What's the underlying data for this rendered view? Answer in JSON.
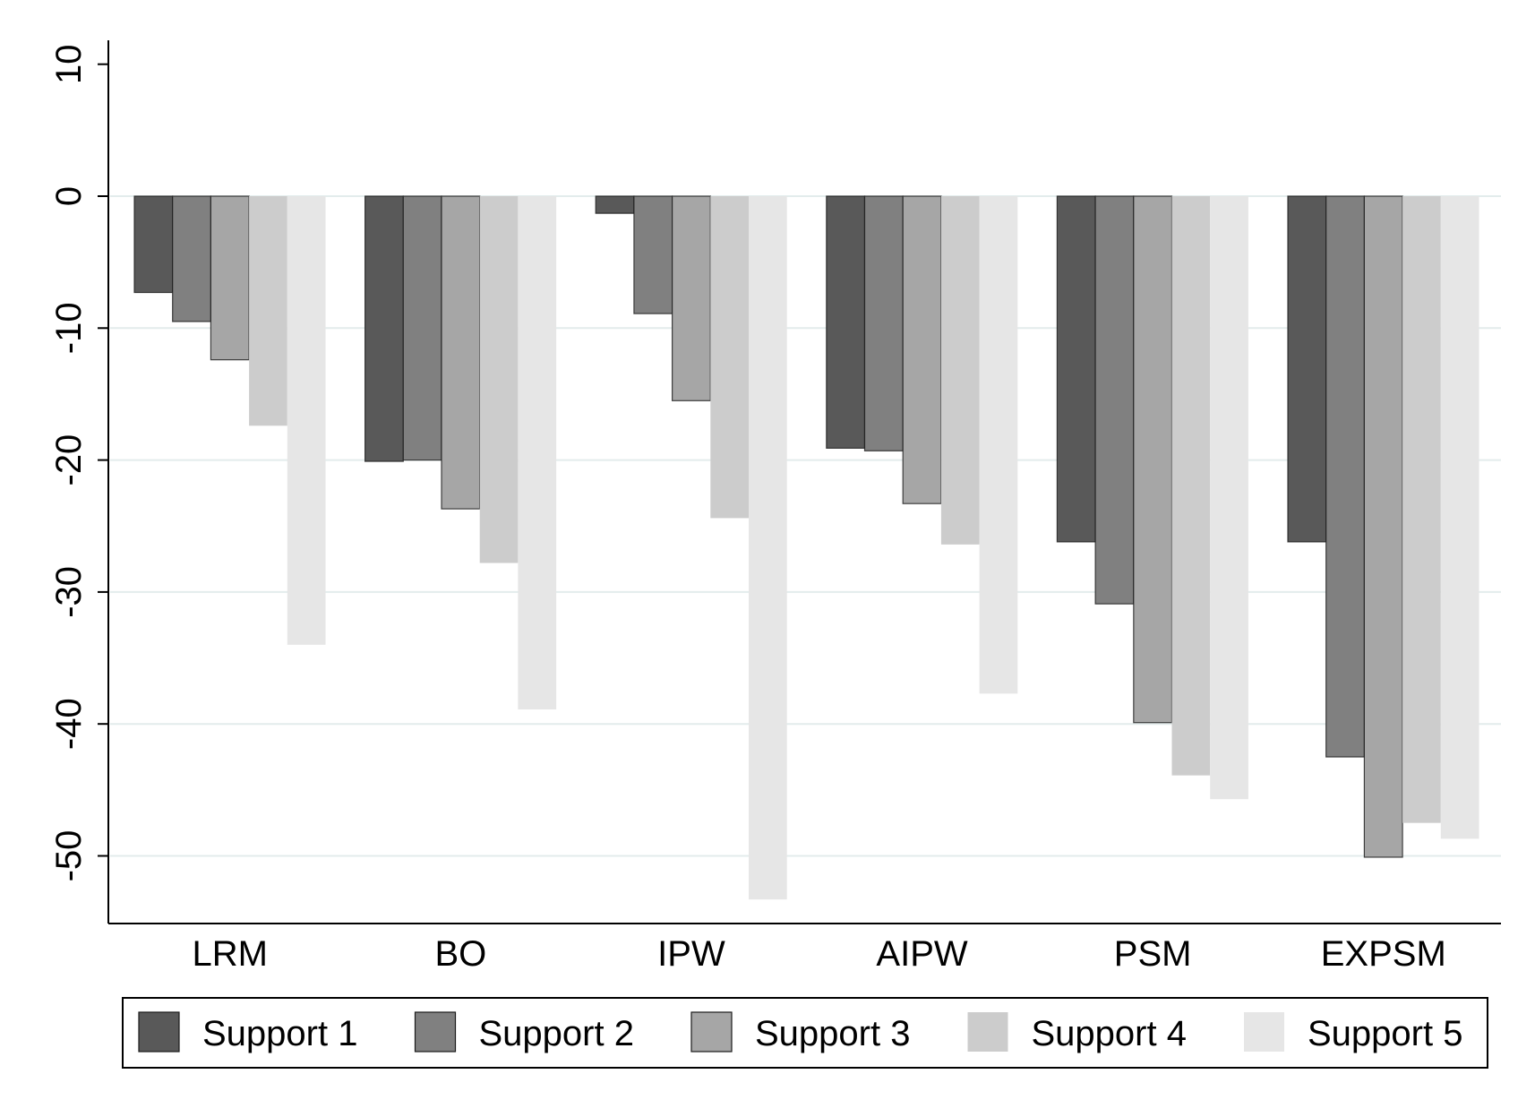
{
  "chart_data": {
    "type": "bar",
    "title": "",
    "xlabel": "",
    "ylabel": "",
    "ylim": [
      -55,
      12
    ],
    "yticks": [
      10,
      0,
      -10,
      -20,
      -30,
      -40,
      -50
    ],
    "ytick_labels": [
      "10",
      "0",
      "-10",
      "-20",
      "-30",
      "-40",
      "-50"
    ],
    "grid": true,
    "legend_position": "bottom",
    "categories": [
      "LRM",
      "BO",
      "IPW",
      "AIPW",
      "PSM",
      "EXPSM"
    ],
    "series": [
      {
        "name": "Support 1",
        "color": "#595959",
        "values": [
          -7.3,
          -20.1,
          -1.3,
          -19.1,
          -26.2,
          -26.2
        ]
      },
      {
        "name": "Support 2",
        "color": "#808080",
        "values": [
          -9.5,
          -20.0,
          -8.9,
          -19.3,
          -30.9,
          -42.5
        ]
      },
      {
        "name": "Support 3",
        "color": "#a6a6a6",
        "values": [
          -12.4,
          -23.7,
          -15.5,
          -23.3,
          -39.9,
          -50.1
        ]
      },
      {
        "name": "Support 4",
        "color": "#cccccc",
        "values": [
          -17.4,
          -27.8,
          -24.4,
          -26.4,
          -43.9,
          -47.5
        ]
      },
      {
        "name": "Support 5",
        "color": "#e6e6e6",
        "values": [
          -34.0,
          -38.9,
          -53.3,
          -37.7,
          -45.7,
          -48.7
        ]
      }
    ]
  }
}
